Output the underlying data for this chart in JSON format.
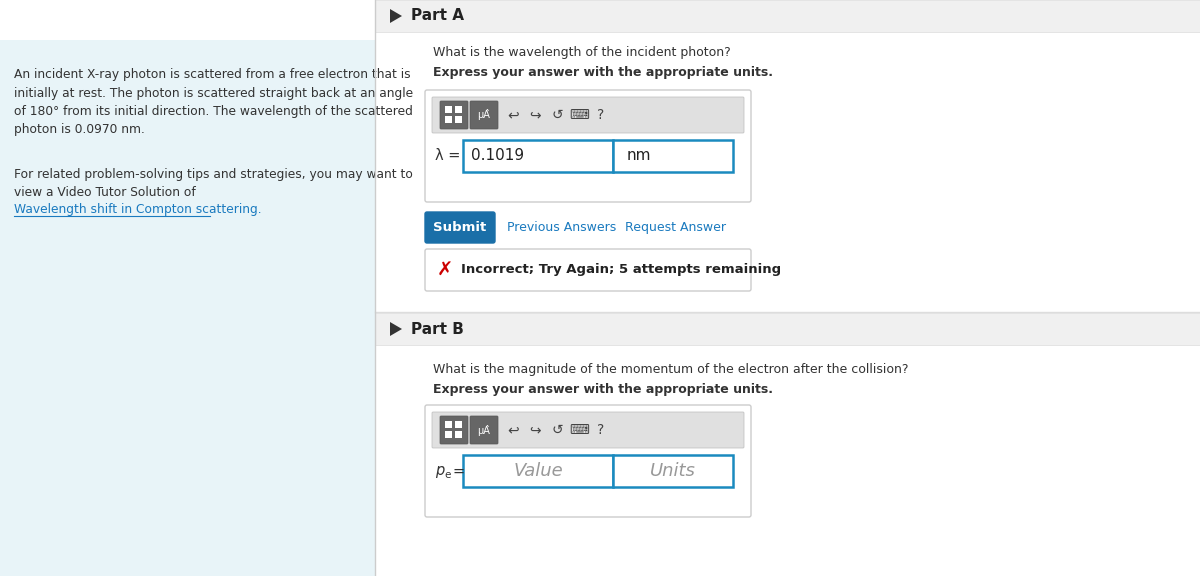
{
  "bg_color": "#ffffff",
  "left_panel_bg": "#e8f4f8",
  "left_panel_text": "An incident X-ray photon is scattered from a free electron that is\ninitially at rest. The photon is scattered straight back at an angle\nof 180° from its initial direction. The wavelength of the scattered\nphoton is 0.0970 nm.",
  "left_panel_text2": "For related problem-solving tips and strategies, you may want to\nview a Video Tutor Solution of",
  "left_panel_link": "Wavelength shift in Compton scattering.",
  "part_a_label": "Part A",
  "part_b_label": "Part B",
  "q_a": "What is the wavelength of the incident photon?",
  "q_a_bold": "Express your answer with the appropriate units.",
  "q_b": "What is the magnitude of the momentum of the electron after the collision?",
  "q_b_bold": "Express your answer with the appropriate units.",
  "answer_a_value": "0.1019",
  "answer_a_unit": "nm",
  "answer_b_value": "Value",
  "answer_b_unit": "Units",
  "lambda_label": "λ =",
  "pe_label": "pe =",
  "submit_text": "Submit",
  "submit_bg": "#1a6fa8",
  "prev_answers_text": "Previous Answers",
  "request_answer_text": "Request Answer",
  "incorrect_text": "Incorrect; Try Again; 5 attempts remaining",
  "incorrect_color": "#cc0000",
  "link_color": "#1a7abf",
  "input_border_color": "#1a8abf",
  "triangle_color": "#333333",
  "text_color": "#333333",
  "header_bg": "#f0f0f0",
  "header_border": "#dddddd",
  "toolbar_bg": "#e0e0e0",
  "btn_bg": "#666666"
}
